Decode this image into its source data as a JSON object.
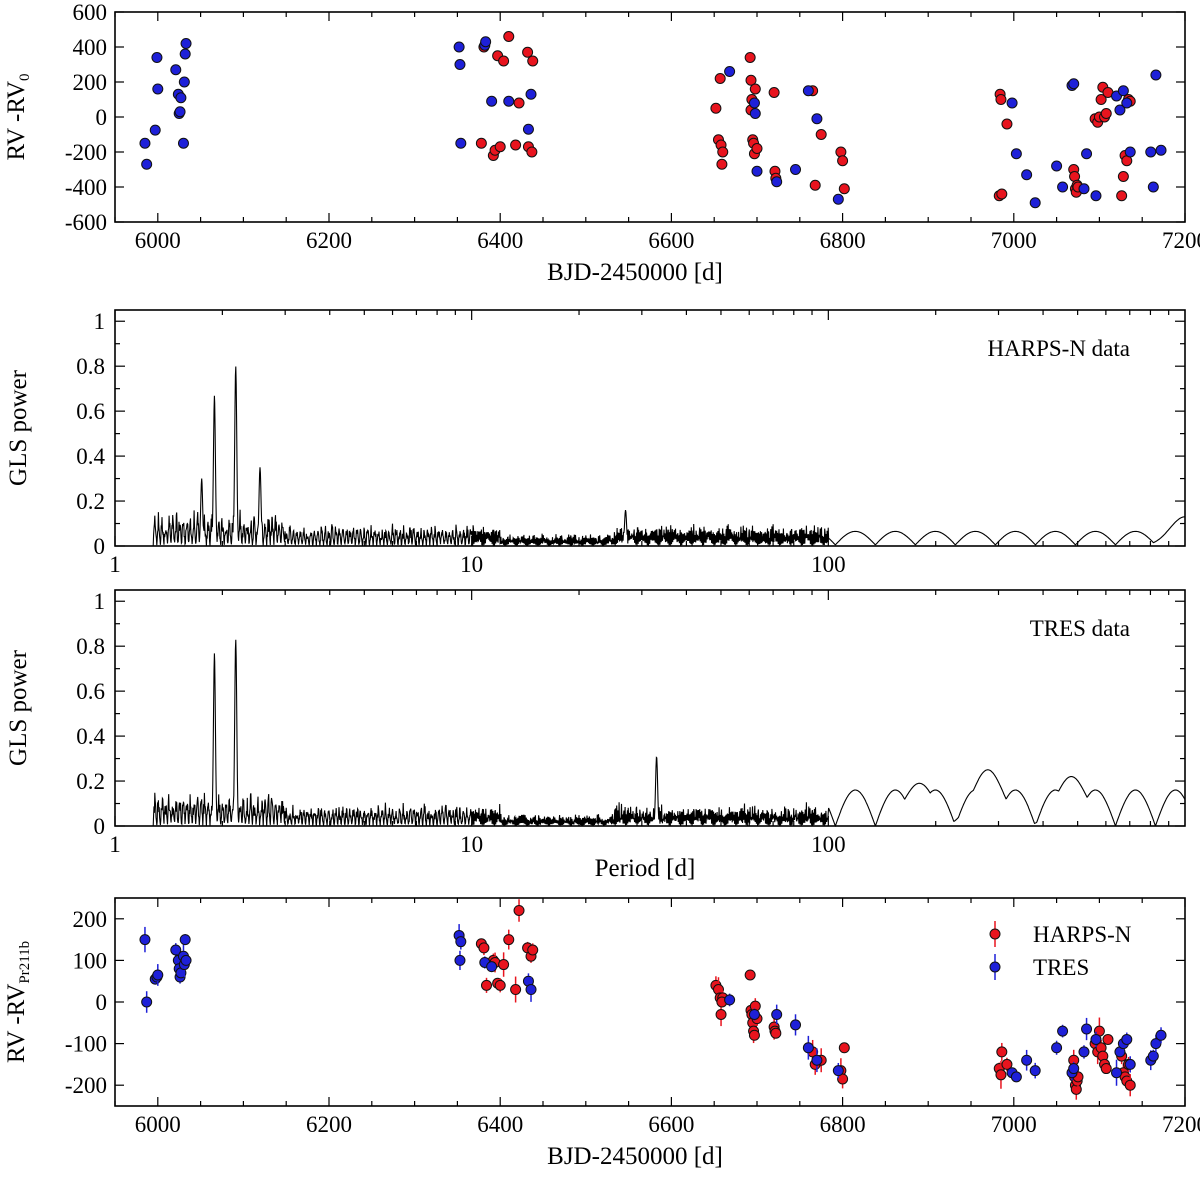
{
  "chart_data": [
    {
      "type": "scatter",
      "panel": "rv-raw",
      "ylabel_main": "RV -RV",
      "ylabel_sub": "0",
      "xlabel": "BJD-2450000 [d]",
      "xlim": [
        5950,
        7200
      ],
      "ylim": [
        -600,
        600
      ],
      "xticks": [
        6000,
        6200,
        6400,
        6600,
        6800,
        7000,
        7200
      ],
      "yticks": [
        -600,
        -400,
        -200,
        0,
        200,
        400,
        600
      ],
      "series": [
        {
          "name": "HARPS-N",
          "color": "#e8141e",
          "x": [
            6378,
            6381,
            6392,
            6394,
            6397,
            6400,
            6404,
            6410,
            6418,
            6422,
            6432,
            6433,
            6437,
            6438,
            6652,
            6655,
            6657,
            6658,
            6660,
            6659,
            6692,
            6693,
            6694,
            6695,
            6696,
            6697,
            6698,
            6693,
            6700,
            6720,
            6721,
            6722,
            6765,
            6768,
            6775,
            6798,
            6800,
            6802,
            6983,
            6984,
            6985,
            6986,
            6992,
            7070,
            7071,
            7072,
            7073,
            7074,
            7075,
            7095,
            7098,
            7100,
            7102,
            7104,
            7106,
            7108,
            7110,
            7126,
            7128,
            7130,
            7132,
            7134,
            7136
          ],
          "y": [
            -150,
            400,
            -220,
            -190,
            350,
            -170,
            320,
            460,
            -160,
            80,
            370,
            -170,
            -200,
            320,
            50,
            -130,
            220,
            -160,
            -200,
            -270,
            340,
            210,
            100,
            -130,
            -150,
            -210,
            160,
            40,
            -180,
            140,
            -310,
            -350,
            150,
            -390,
            -100,
            -200,
            -250,
            -410,
            -450,
            130,
            100,
            -440,
            -40,
            -300,
            -340,
            -410,
            -430,
            -390,
            -400,
            -10,
            -30,
            0,
            100,
            170,
            0,
            20,
            140,
            -450,
            -340,
            -220,
            -250,
            100,
            90
          ]
        },
        {
          "name": "TRES",
          "color": "#1e20d8",
          "x": [
            5985,
            5987,
            5997,
            5999,
            6000,
            6021,
            6024,
            6025,
            6026,
            6027,
            6030,
            6031,
            6032,
            6033,
            6352,
            6353,
            6354,
            6382,
            6383,
            6390,
            6410,
            6433,
            6436,
            6668,
            6697,
            6698,
            6700,
            6723,
            6745,
            6760,
            6770,
            6795,
            6998,
            7003,
            7015,
            7025,
            7050,
            7057,
            7068,
            7070,
            7082,
            7085,
            7096,
            7120,
            7124,
            7128,
            7132,
            7136,
            7160,
            7163,
            7166,
            7172
          ],
          "y": [
            -150,
            -270,
            -75,
            340,
            160,
            270,
            130,
            20,
            30,
            110,
            -150,
            200,
            360,
            420,
            400,
            300,
            -150,
            410,
            430,
            90,
            90,
            -70,
            130,
            260,
            80,
            20,
            -310,
            -370,
            -300,
            150,
            -10,
            -470,
            80,
            -210,
            -330,
            -490,
            -280,
            -400,
            180,
            190,
            -410,
            -210,
            -450,
            120,
            40,
            150,
            80,
            -200,
            -200,
            -400,
            240,
            -190
          ]
        }
      ]
    },
    {
      "type": "line",
      "panel": "gls-harps",
      "annotation": "HARPS-N data",
      "ylabel": "GLS power",
      "xscale": "log",
      "xlim": [
        1,
        1000
      ],
      "ylim": [
        0,
        1
      ],
      "xticks": [
        1,
        10,
        100
      ],
      "xtick_labels": [
        "1",
        "10",
        "100"
      ],
      "yticks": [
        0,
        0.2,
        0.4,
        0.6,
        0.8,
        1
      ],
      "ytick_labels": [
        "0",
        "0.2",
        "0.4",
        "0.6",
        "0.8",
        "1"
      ],
      "peaks": [
        {
          "period": 1.9,
          "power": 0.67
        },
        {
          "period": 2.18,
          "power": 0.8
        },
        {
          "period": 1.75,
          "power": 0.3
        },
        {
          "period": 2.55,
          "power": 0.35
        },
        {
          "period": 27,
          "power": 0.16
        },
        {
          "period": 1000,
          "power": 0.13
        }
      ]
    },
    {
      "type": "line",
      "panel": "gls-tres",
      "annotation": "TRES data",
      "ylabel": "GLS power",
      "xlabel": "Period [d]",
      "xscale": "log",
      "xlim": [
        1,
        1000
      ],
      "ylim": [
        0,
        1
      ],
      "xticks": [
        1,
        10,
        100
      ],
      "xtick_labels": [
        "1",
        "10",
        "100"
      ],
      "yticks": [
        0,
        0.2,
        0.4,
        0.6,
        0.8,
        1
      ],
      "ytick_labels": [
        "0",
        "0.2",
        "0.4",
        "0.6",
        "0.8",
        "1"
      ],
      "peaks": [
        {
          "period": 1.9,
          "power": 0.77
        },
        {
          "period": 2.18,
          "power": 0.83
        },
        {
          "period": 33,
          "power": 0.31
        },
        {
          "period": 280,
          "power": 0.25
        },
        {
          "period": 480,
          "power": 0.22
        },
        {
          "period": 180,
          "power": 0.19
        }
      ]
    },
    {
      "type": "scatter",
      "panel": "rv-residual",
      "ylabel_main": "RV -RV",
      "ylabel_sub": "Pr211b",
      "xlabel": "BJD-2450000 [d]",
      "xlim": [
        5950,
        7200
      ],
      "ylim": [
        -250,
        250
      ],
      "xticks": [
        6000,
        6200,
        6400,
        6600,
        6800,
        7000,
        7200
      ],
      "yticks": [
        -200,
        -100,
        0,
        100,
        200
      ],
      "legend": [
        "HARPS-N",
        "TRES"
      ],
      "legend_position": "top-right",
      "series": [
        {
          "name": "HARPS-N",
          "color": "#e8141e",
          "x": [
            6378,
            6381,
            6384,
            6392,
            6394,
            6397,
            6400,
            6404,
            6410,
            6418,
            6422,
            6432,
            6436,
            6438,
            6652,
            6655,
            6657,
            6658,
            6660,
            6659,
            6692,
            6693,
            6694,
            6695,
            6696,
            6697,
            6698,
            6700,
            6720,
            6721,
            6722,
            6765,
            6768,
            6775,
            6798,
            6800,
            6802,
            6983,
            6985,
            6986,
            6992,
            7070,
            7071,
            7072,
            7073,
            7074,
            7075,
            7095,
            7098,
            7100,
            7102,
            7104,
            7106,
            7108,
            7110,
            7126,
            7128,
            7130,
            7132,
            7134,
            7136
          ],
          "y": [
            140,
            130,
            40,
            100,
            95,
            45,
            40,
            90,
            150,
            30,
            220,
            130,
            110,
            125,
            40,
            30,
            10,
            -30,
            10,
            0,
            65,
            -20,
            -30,
            -50,
            -70,
            -80,
            -10,
            -40,
            -60,
            -70,
            -75,
            -120,
            -150,
            -140,
            -165,
            -185,
            -110,
            -160,
            -175,
            -120,
            -150,
            -140,
            -180,
            -200,
            -210,
            -190,
            -180,
            -100,
            -120,
            -70,
            -110,
            -130,
            -150,
            -160,
            -90,
            -130,
            -170,
            -180,
            -190,
            -150,
            -200
          ]
        },
        {
          "name": "TRES",
          "color": "#1e20d8",
          "x": [
            5985,
            5987,
            5997,
            5999,
            6000,
            6021,
            6024,
            6025,
            6026,
            6027,
            6030,
            6031,
            6032,
            6033,
            6352,
            6353,
            6354,
            6382,
            6390,
            6433,
            6436,
            6668,
            6697,
            6723,
            6745,
            6760,
            6770,
            6795,
            6998,
            7003,
            7015,
            7025,
            7050,
            7057,
            7068,
            7070,
            7082,
            7085,
            7096,
            7120,
            7124,
            7128,
            7132,
            7136,
            7160,
            7163,
            7166,
            7172
          ],
          "y": [
            150,
            0,
            55,
            60,
            65,
            125,
            100,
            80,
            60,
            70,
            110,
            90,
            150,
            100,
            160,
            100,
            145,
            95,
            85,
            50,
            30,
            5,
            -30,
            -30,
            -55,
            -110,
            -140,
            -165,
            -170,
            -180,
            -140,
            -165,
            -110,
            -70,
            -170,
            -160,
            -120,
            -65,
            -90,
            -170,
            -120,
            -100,
            -90,
            -150,
            -140,
            -130,
            -100,
            -80
          ]
        }
      ]
    }
  ]
}
